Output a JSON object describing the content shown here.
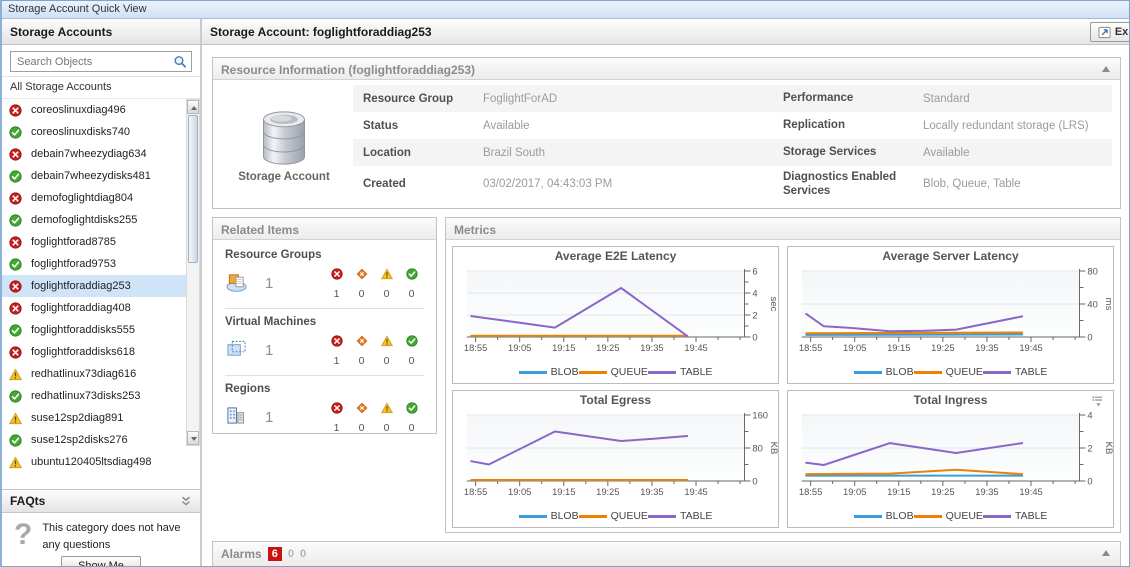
{
  "window": {
    "title": "Storage Account Quick View"
  },
  "colors": {
    "series": {
      "BLOB": "#3b9cdb",
      "QUEUE": "#ee8100",
      "TABLE": "#8a66c9"
    },
    "status": {
      "error": "#c8201e",
      "ok": "#43a832",
      "warning": "#f5c122",
      "critical": "#ed7d23"
    },
    "selection": "#cfe4f6",
    "fatal_badge": "#cc1111"
  },
  "sidebar": {
    "title": "Storage Accounts",
    "search_placeholder": "Search Objects",
    "list_header": "All Storage Accounts",
    "items": [
      {
        "label": "coreoslinuxdiag496",
        "status": "error",
        "selected": false
      },
      {
        "label": "coreoslinuxdisks740",
        "status": "ok",
        "selected": false
      },
      {
        "label": "debain7wheezydiag634",
        "status": "error",
        "selected": false
      },
      {
        "label": "debain7wheezydisks481",
        "status": "ok",
        "selected": false
      },
      {
        "label": "demofoglightdiag804",
        "status": "error",
        "selected": false
      },
      {
        "label": "demofoglightdisks255",
        "status": "ok",
        "selected": false
      },
      {
        "label": "foglightforad8785",
        "status": "error",
        "selected": false
      },
      {
        "label": "foglightforad9753",
        "status": "ok",
        "selected": false
      },
      {
        "label": "foglightforaddiag253",
        "status": "error",
        "selected": true
      },
      {
        "label": "foglightforaddiag408",
        "status": "error",
        "selected": false
      },
      {
        "label": "foglightforaddisks555",
        "status": "ok",
        "selected": false
      },
      {
        "label": "foglightforaddisks618",
        "status": "error",
        "selected": false
      },
      {
        "label": "redhatlinux73diag616",
        "status": "warning",
        "selected": false
      },
      {
        "label": "redhatlinux73disks253",
        "status": "ok",
        "selected": false
      },
      {
        "label": "suse12sp2diag891",
        "status": "warning",
        "selected": false
      },
      {
        "label": "suse12sp2disks276",
        "status": "ok",
        "selected": false
      },
      {
        "label": "ubuntu120405ltsdiag498",
        "status": "warning",
        "selected": false
      }
    ],
    "faq": {
      "title": "FAQts",
      "message": "This category does not have any questions",
      "button_label": "Show Me"
    }
  },
  "main": {
    "title": "Storage Account: foglightforaddiag253",
    "explore_label": "Exp",
    "resource_info": {
      "title": "Resource Information (foglightforaddiag253)",
      "icon_label": "Storage Account",
      "rows": [
        {
          "label_left": "Resource Group",
          "value_left": "FoglightForAD",
          "label_right": "Performance",
          "value_right": "Standard"
        },
        {
          "label_left": "Status",
          "value_left": "Available",
          "label_right": "Replication",
          "value_right": "Locally redundant storage (LRS)"
        },
        {
          "label_left": "Location",
          "value_left": "Brazil South",
          "label_right": "Storage Services",
          "value_right": "Available"
        },
        {
          "label_left": "Created",
          "value_left": "03/02/2017, 04:43:03 PM",
          "label_right": "Diagnostics Enabled Services",
          "value_right": "Blob, Queue, Table"
        }
      ]
    },
    "related_items": {
      "title": "Related Items",
      "severity_order": [
        "fatal",
        "critical",
        "warning",
        "normal"
      ],
      "groups": [
        {
          "label": "Resource Groups",
          "icon": "resource-group",
          "count": "1",
          "severity_counts": [
            "1",
            "0",
            "0",
            "0"
          ]
        },
        {
          "label": "Virtual Machines",
          "icon": "virtual-machine",
          "count": "1",
          "severity_counts": [
            "1",
            "0",
            "0",
            "0"
          ]
        },
        {
          "label": "Regions",
          "icon": "region",
          "count": "1",
          "severity_counts": [
            "1",
            "0",
            "0",
            "0"
          ]
        }
      ]
    },
    "metrics": {
      "title": "Metrics"
    },
    "alarms": {
      "label": "Alarms",
      "fatal": "6",
      "critical": "0",
      "warning": "0"
    }
  },
  "chart_data": [
    {
      "type": "line",
      "title": "Average E2E Latency",
      "ylabel": "sec",
      "ylim": [
        0,
        6
      ],
      "yticks": [
        0,
        2,
        4,
        6
      ],
      "x_tick_labels": [
        "18:55",
        "19:05",
        "19:15",
        "19:25",
        "19:35",
        "19:45"
      ],
      "legend": [
        "BLOB",
        "QUEUE",
        "TABLE"
      ],
      "series": [
        {
          "name": "BLOB",
          "points": [
            [
              "18:54",
              0.08
            ],
            [
              "19:43",
              0.08
            ]
          ]
        },
        {
          "name": "QUEUE",
          "points": [
            [
              "18:54",
              0.12
            ],
            [
              "19:43",
              0.12
            ]
          ]
        },
        {
          "name": "TABLE",
          "points": [
            [
              "18:54",
              1.9
            ],
            [
              "19:04",
              1.35
            ],
            [
              "19:13",
              0.85
            ],
            [
              "19:28",
              4.45
            ],
            [
              "19:43",
              0.1
            ]
          ]
        }
      ]
    },
    {
      "type": "line",
      "title": "Average Server Latency",
      "ylabel": "ms",
      "ylim": [
        0,
        80
      ],
      "yticks": [
        0,
        40,
        80
      ],
      "x_tick_labels": [
        "18:55",
        "19:05",
        "19:15",
        "19:25",
        "19:35",
        "19:45"
      ],
      "legend": [
        "BLOB",
        "QUEUE",
        "TABLE"
      ],
      "series": [
        {
          "name": "BLOB",
          "points": [
            [
              "18:54",
              2.5
            ],
            [
              "19:43",
              3
            ]
          ]
        },
        {
          "name": "QUEUE",
          "points": [
            [
              "18:54",
              4.5
            ],
            [
              "19:43",
              5.5
            ]
          ]
        },
        {
          "name": "TABLE",
          "points": [
            [
              "18:54",
              28
            ],
            [
              "18:58",
              13
            ],
            [
              "19:04",
              11
            ],
            [
              "19:13",
              7
            ],
            [
              "19:21",
              7.5
            ],
            [
              "19:28",
              9
            ],
            [
              "19:43",
              25
            ]
          ]
        }
      ]
    },
    {
      "type": "line",
      "title": "Total Egress",
      "ylabel": "KB",
      "ylim": [
        0,
        160
      ],
      "yticks": [
        0,
        80,
        160
      ],
      "x_tick_labels": [
        "18:55",
        "19:05",
        "19:15",
        "19:25",
        "19:35",
        "19:45"
      ],
      "legend": [
        "BLOB",
        "QUEUE",
        "TABLE"
      ],
      "series": [
        {
          "name": "BLOB",
          "points": [
            [
              "18:54",
              1.5
            ],
            [
              "19:43",
              1.5
            ]
          ]
        },
        {
          "name": "QUEUE",
          "points": [
            [
              "18:54",
              2.5
            ],
            [
              "19:43",
              2.5
            ]
          ]
        },
        {
          "name": "TABLE",
          "points": [
            [
              "18:54",
              48
            ],
            [
              "18:58",
              40
            ],
            [
              "19:13",
              120
            ],
            [
              "19:28",
              97
            ],
            [
              "19:35",
              102
            ],
            [
              "19:43",
              109
            ]
          ]
        }
      ]
    },
    {
      "type": "line",
      "title": "Total Ingress",
      "ylabel": "KB",
      "ylim": [
        0,
        4
      ],
      "yticks": [
        0,
        2,
        4
      ],
      "x_tick_labels": [
        "18:55",
        "19:05",
        "19:15",
        "19:25",
        "19:35",
        "19:45"
      ],
      "legend": [
        "BLOB",
        "QUEUE",
        "TABLE"
      ],
      "customizer_icon": true,
      "series": [
        {
          "name": "BLOB",
          "points": [
            [
              "18:54",
              0.33
            ],
            [
              "19:43",
              0.33
            ]
          ]
        },
        {
          "name": "QUEUE",
          "points": [
            [
              "18:54",
              0.42
            ],
            [
              "19:13",
              0.45
            ],
            [
              "19:28",
              0.68
            ],
            [
              "19:43",
              0.42
            ]
          ]
        },
        {
          "name": "TABLE",
          "points": [
            [
              "18:54",
              1.1
            ],
            [
              "18:58",
              0.97
            ],
            [
              "19:13",
              2.3
            ],
            [
              "19:28",
              1.7
            ],
            [
              "19:43",
              2.3
            ]
          ]
        }
      ]
    }
  ]
}
